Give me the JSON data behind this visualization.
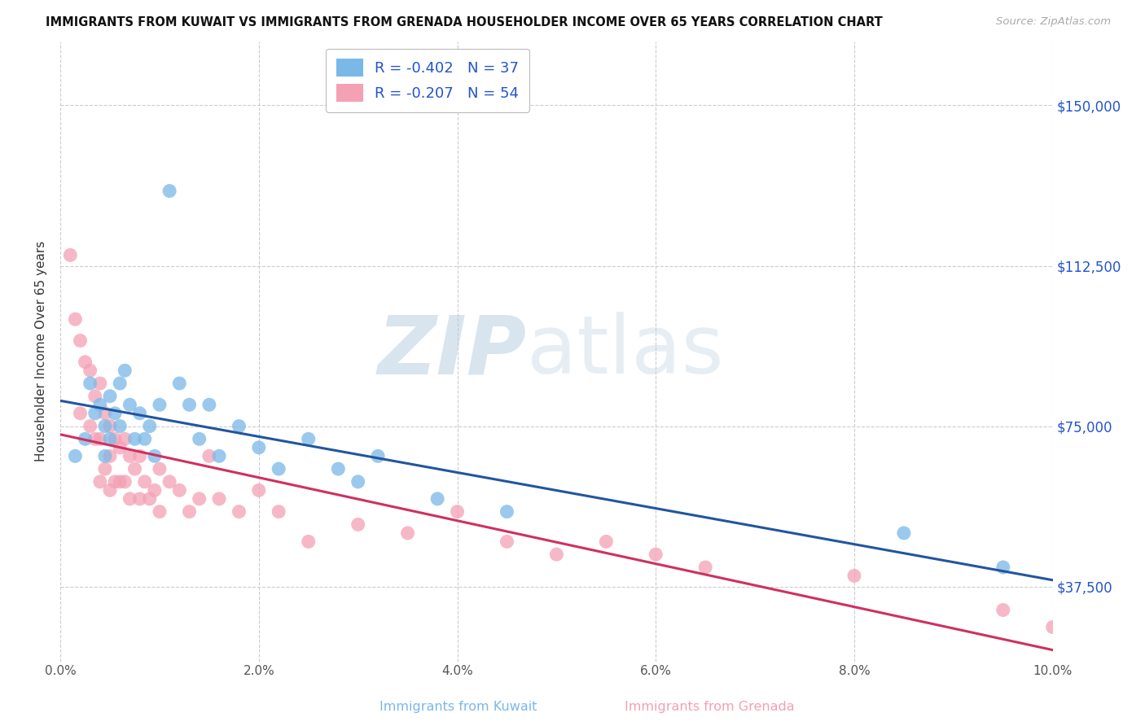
{
  "title": "IMMIGRANTS FROM KUWAIT VS IMMIGRANTS FROM GRENADA HOUSEHOLDER INCOME OVER 65 YEARS CORRELATION CHART",
  "source": "Source: ZipAtlas.com",
  "xlabel_bottom_kuwait": "Immigrants from Kuwait",
  "xlabel_bottom_grenada": "Immigrants from Grenada",
  "ylabel": "Householder Income Over 65 years",
  "xlim": [
    0.0,
    10.0
  ],
  "ylim": [
    20000,
    165000
  ],
  "yticks": [
    37500,
    75000,
    112500,
    150000
  ],
  "ytick_labels": [
    "$37,500",
    "$75,000",
    "$112,500",
    "$150,000"
  ],
  "xticks": [
    0.0,
    2.0,
    4.0,
    6.0,
    8.0,
    10.0
  ],
  "xtick_labels": [
    "0.0%",
    "2.0%",
    "4.0%",
    "6.0%",
    "8.0%",
    "10.0%"
  ],
  "kuwait_R": -0.402,
  "kuwait_N": 37,
  "grenada_R": -0.207,
  "grenada_N": 54,
  "kuwait_color": "#7ab8e8",
  "grenada_color": "#f4a0b5",
  "kuwait_line_color": "#2255a0",
  "grenada_line_color": "#d03060",
  "value_color": "#2255cc",
  "background_color": "#ffffff",
  "grid_color": "#cccccc",
  "kuwait_x": [
    0.15,
    0.25,
    0.3,
    0.35,
    0.4,
    0.45,
    0.45,
    0.5,
    0.5,
    0.55,
    0.6,
    0.6,
    0.65,
    0.7,
    0.75,
    0.8,
    0.85,
    0.9,
    0.95,
    1.0,
    1.1,
    1.2,
    1.3,
    1.4,
    1.5,
    1.6,
    1.8,
    2.0,
    2.2,
    2.5,
    2.8,
    3.0,
    3.2,
    3.8,
    4.5,
    8.5,
    9.5
  ],
  "kuwait_y": [
    68000,
    72000,
    85000,
    78000,
    80000,
    75000,
    68000,
    82000,
    72000,
    78000,
    85000,
    75000,
    88000,
    80000,
    72000,
    78000,
    72000,
    75000,
    68000,
    80000,
    130000,
    85000,
    80000,
    72000,
    80000,
    68000,
    75000,
    70000,
    65000,
    72000,
    65000,
    62000,
    68000,
    58000,
    55000,
    50000,
    42000
  ],
  "grenada_x": [
    0.1,
    0.15,
    0.2,
    0.2,
    0.25,
    0.3,
    0.3,
    0.35,
    0.35,
    0.4,
    0.4,
    0.4,
    0.45,
    0.45,
    0.5,
    0.5,
    0.5,
    0.55,
    0.55,
    0.6,
    0.6,
    0.65,
    0.65,
    0.7,
    0.7,
    0.75,
    0.8,
    0.8,
    0.85,
    0.9,
    0.95,
    1.0,
    1.0,
    1.1,
    1.2,
    1.3,
    1.4,
    1.5,
    1.6,
    1.8,
    2.0,
    2.2,
    2.5,
    3.0,
    3.5,
    4.0,
    4.5,
    5.0,
    5.5,
    6.0,
    6.5,
    8.0,
    9.5,
    10.0
  ],
  "grenada_y": [
    115000,
    100000,
    95000,
    78000,
    90000,
    88000,
    75000,
    82000,
    72000,
    85000,
    72000,
    62000,
    78000,
    65000,
    75000,
    68000,
    60000,
    72000,
    62000,
    70000,
    62000,
    72000,
    62000,
    68000,
    58000,
    65000,
    68000,
    58000,
    62000,
    58000,
    60000,
    65000,
    55000,
    62000,
    60000,
    55000,
    58000,
    68000,
    58000,
    55000,
    60000,
    55000,
    48000,
    52000,
    50000,
    55000,
    48000,
    45000,
    48000,
    45000,
    42000,
    40000,
    32000,
    28000
  ]
}
